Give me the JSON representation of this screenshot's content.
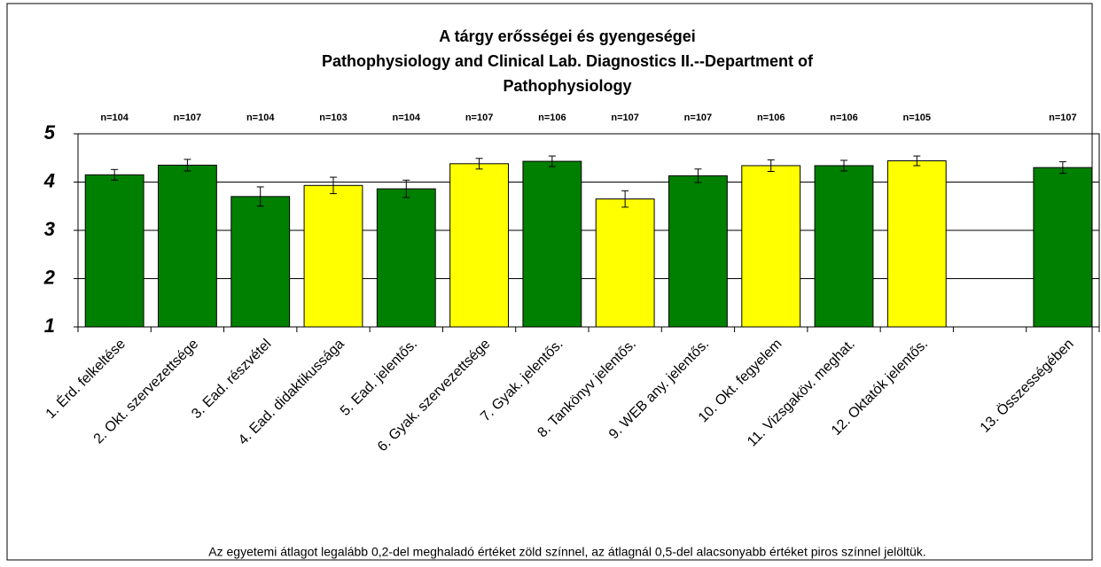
{
  "chart_data": {
    "type": "bar",
    "title": [
      "A tárgy erősségei és gyengeségei",
      "Pathophysiology and Clinical Lab. Diagnostics II.--Department of",
      "Pathophysiology"
    ],
    "categories": [
      "1. Érd. felkeltése",
      "2. Okt. szervezettsége",
      "3. Ead. részvétel",
      "4. Ead. didaktikussága",
      "5. Ead. jelentős.",
      "6. Gyak. szervezettsége",
      "7. Gyak. jelentős.",
      "8. Tankönyv jelentős.",
      "9. WEB any. jelentős.",
      "10. Okt. fegyelem",
      "11. Vizsgaköv. meghat.",
      "12. Oktatók jelentős.",
      null,
      "13. Összességében"
    ],
    "values": [
      4.15,
      4.35,
      3.7,
      3.93,
      3.86,
      4.38,
      4.43,
      3.65,
      4.13,
      4.34,
      4.34,
      4.44,
      null,
      4.3
    ],
    "errors": [
      0.11,
      0.12,
      0.2,
      0.17,
      0.18,
      0.11,
      0.11,
      0.17,
      0.14,
      0.12,
      0.11,
      0.1,
      null,
      0.12
    ],
    "colors": [
      "#008000",
      "#008000",
      "#008000",
      "#ffff00",
      "#008000",
      "#ffff00",
      "#008000",
      "#ffff00",
      "#008000",
      "#ffff00",
      "#008000",
      "#ffff00",
      null,
      "#008000"
    ],
    "n_labels": [
      "n=104",
      "n=107",
      "n=104",
      "n=103",
      "n=104",
      "n=107",
      "n=106",
      "n=107",
      "n=107",
      "n=106",
      "n=106",
      "n=105",
      null,
      "n=107"
    ],
    "ylim": [
      1,
      5
    ],
    "yticks": [
      1,
      2,
      3,
      4,
      5
    ],
    "grid": true,
    "note": "Az egyetemi átlagot legalább 0,2-del meghaladó értéket zöld színnel, az átlagnál 0,5-del alacsonyabb értéket piros színnel jelöltük."
  }
}
